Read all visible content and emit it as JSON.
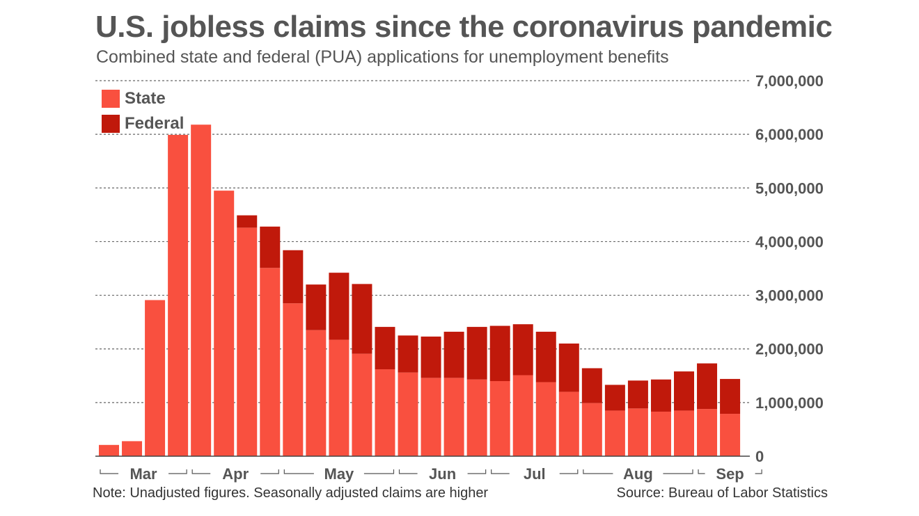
{
  "chart_data": {
    "type": "bar",
    "stacked": true,
    "title": "U.S. jobless claims since the coronavirus pandemic",
    "subtitle": "Combined state and federal (PUA) applications for unemployment benefits",
    "ylim": [
      0,
      7000000
    ],
    "yticks": [
      {
        "value": 0,
        "label": "0"
      },
      {
        "value": 1000000,
        "label": "1,000,000"
      },
      {
        "value": 2000000,
        "label": "2,000,000"
      },
      {
        "value": 3000000,
        "label": "3,000,000"
      },
      {
        "value": 4000000,
        "label": "4,000,000"
      },
      {
        "value": 5000000,
        "label": "5,000,000"
      },
      {
        "value": 6000000,
        "label": "6,000,000"
      },
      {
        "value": 7000000,
        "label": "7,000,000"
      }
    ],
    "grid": true,
    "legend_position": "top-left",
    "month_groups": [
      {
        "label": "Mar",
        "start": 0,
        "end": 3
      },
      {
        "label": "Apr",
        "start": 4,
        "end": 7
      },
      {
        "label": "May",
        "start": 8,
        "end": 12
      },
      {
        "label": "Jun",
        "start": 13,
        "end": 16
      },
      {
        "label": "Jul",
        "start": 17,
        "end": 20
      },
      {
        "label": "Aug",
        "start": 21,
        "end": 25
      },
      {
        "label": "Sep",
        "start": 26,
        "end": 28
      }
    ],
    "series": [
      {
        "name": "State",
        "color": "#f9503f",
        "values": [
          210000,
          280000,
          2910000,
          5990000,
          6180000,
          4950000,
          4260000,
          3510000,
          2850000,
          2350000,
          2170000,
          1910000,
          1620000,
          1560000,
          1460000,
          1460000,
          1430000,
          1400000,
          1510000,
          1380000,
          1200000,
          990000,
          850000,
          890000,
          830000,
          850000,
          880000,
          790000
        ]
      },
      {
        "name": "Federal",
        "color": "#c0190b",
        "values": [
          0,
          0,
          0,
          0,
          0,
          0,
          230000,
          770000,
          990000,
          850000,
          1250000,
          1300000,
          790000,
          690000,
          770000,
          860000,
          980000,
          1030000,
          950000,
          940000,
          900000,
          650000,
          480000,
          520000,
          600000,
          730000,
          850000,
          650000
        ]
      }
    ]
  },
  "note": "Note: Unadjusted figures. Seasonally adjusted claims are higher",
  "source": "Source: Bureau of Labor Statistics"
}
